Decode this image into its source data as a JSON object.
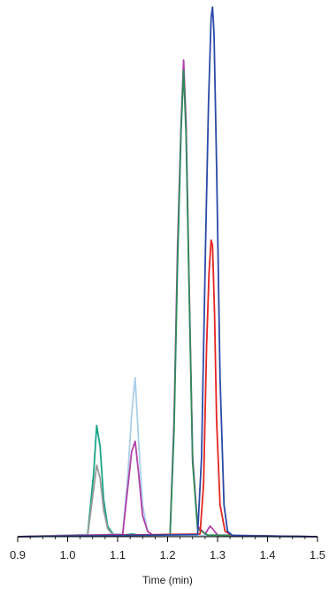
{
  "chart_data": {
    "type": "line",
    "title": "",
    "xlabel": "Time (min)",
    "ylabel": "",
    "xlim": [
      0.9,
      1.5
    ],
    "ylim": [
      0,
      100
    ],
    "x_ticks": [
      "0.9",
      "1.0",
      "1.1",
      "1.2",
      "1.3",
      "1.4",
      "1.5"
    ],
    "grid": false,
    "legend": "none",
    "series": [
      {
        "color": "#1aa58a",
        "x": [
          0.9,
          1.04,
          1.052,
          1.058,
          1.065,
          1.072,
          1.08,
          1.09,
          1.1,
          1.13,
          1.15,
          1.5
        ],
        "values": [
          0,
          0.4,
          12,
          21,
          17,
          7,
          2,
          0.6,
          0.2,
          0.5,
          0.2,
          0
        ]
      },
      {
        "color": "#9a9a9a",
        "x": [
          0.9,
          1.04,
          1.052,
          1.058,
          1.065,
          1.072,
          1.08,
          1.09,
          1.1,
          1.5
        ],
        "values": [
          0,
          0.3,
          9,
          13.5,
          11,
          5,
          1.5,
          0.4,
          0.2,
          0
        ]
      },
      {
        "color": "#a9cfe8",
        "x": [
          0.9,
          1.11,
          1.12,
          1.128,
          1.135,
          1.142,
          1.15,
          1.16,
          1.17,
          1.5
        ],
        "values": [
          0,
          0.5,
          11,
          23,
          30,
          18,
          6,
          1,
          0.3,
          0
        ]
      },
      {
        "color": "#b040a8",
        "x": [
          0.9,
          1.11,
          1.12,
          1.128,
          1.135,
          1.142,
          1.15,
          1.16,
          1.17,
          1.205,
          1.213,
          1.22,
          1.227,
          1.232,
          1.237,
          1.243,
          1.25,
          1.26,
          1.275,
          1.285,
          1.29,
          1.3,
          1.5
        ],
        "values": [
          0,
          0.4,
          9,
          16,
          18,
          12,
          4,
          1,
          0.3,
          0.4,
          22,
          55,
          78,
          90,
          78,
          48,
          15,
          2,
          0.5,
          2,
          1.5,
          0.3,
          0
        ]
      },
      {
        "color": "#2e8a5a",
        "x": [
          0.9,
          1.205,
          1.213,
          1.22,
          1.227,
          1.232,
          1.237,
          1.243,
          1.25,
          1.26,
          1.28,
          1.5
        ],
        "values": [
          0,
          0.4,
          20,
          52,
          77,
          88,
          76,
          47,
          14,
          1.5,
          0.3,
          0
        ]
      },
      {
        "color": "#e52521",
        "x": [
          0.9,
          1.265,
          1.272,
          1.278,
          1.283,
          1.287,
          1.29,
          1.294,
          1.298,
          1.305,
          1.315,
          1.33,
          1.5
        ],
        "values": [
          0,
          0.5,
          10,
          36,
          50,
          56,
          55,
          42,
          22,
          6,
          1,
          0.2,
          0
        ]
      },
      {
        "color": "#2b4aa8",
        "x": [
          0.9,
          1.26,
          1.268,
          1.276,
          1.282,
          1.287,
          1.29,
          1.293,
          1.298,
          1.305,
          1.313,
          1.32,
          1.33,
          1.5
        ],
        "values": [
          0,
          0.4,
          15,
          55,
          82,
          98,
          100,
          95,
          70,
          30,
          6,
          1,
          0.2,
          0
        ]
      }
    ]
  }
}
